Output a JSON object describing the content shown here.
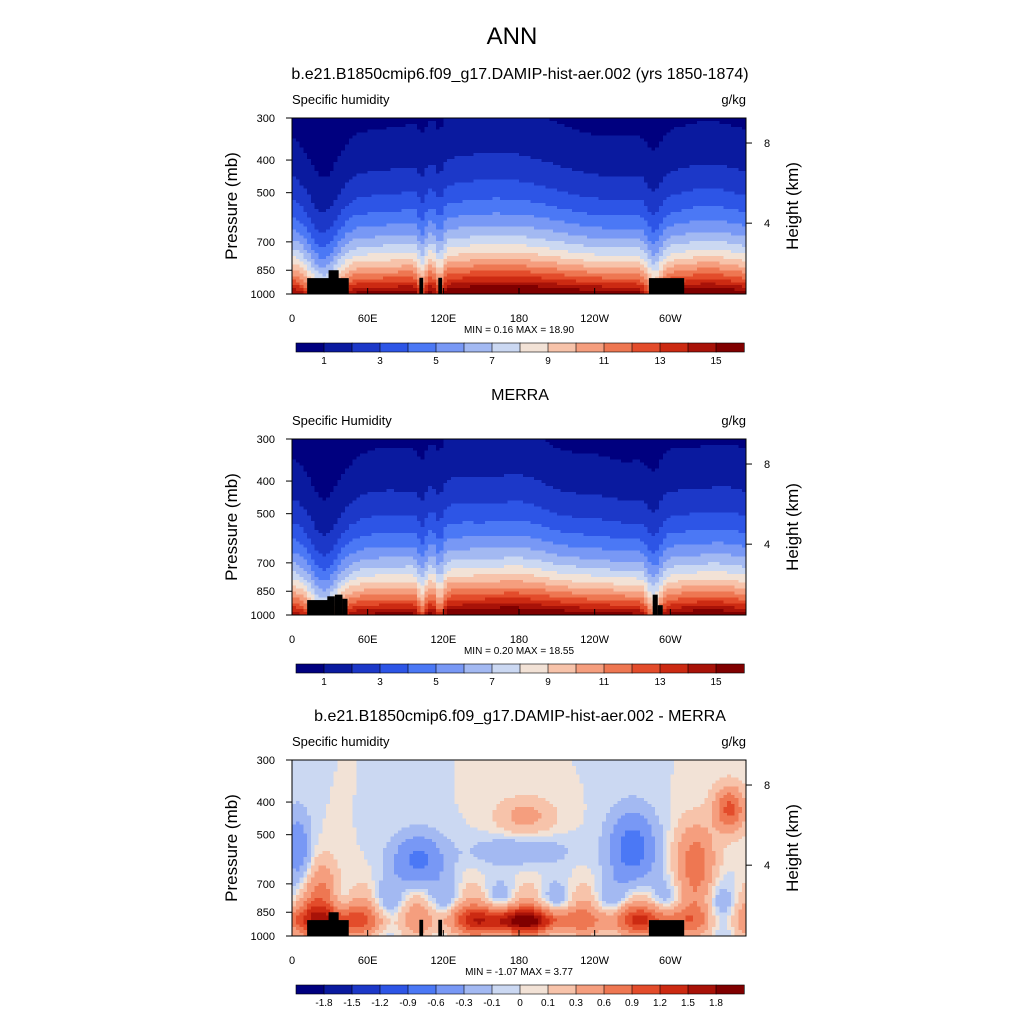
{
  "figure": {
    "title": "ANN",
    "left_axis_label": "Pressure (mb)",
    "right_axis_label": "Height (km)",
    "variable_units": "g/kg"
  },
  "chart_data": [
    {
      "type": "heatmap",
      "title": "b.e21.B1850cmip6.f09_g17.DAMIP-hist-aer.002 (yrs 1850-1874)",
      "subtitle_left": "Specific humidity",
      "subtitle_right": "g/kg",
      "ylabel": "Pressure (mb)",
      "ylabel_right": "Height (km)",
      "y_ticks": [
        "300",
        "400",
        "500",
        "700",
        "850",
        "1000"
      ],
      "y_tick_values": [
        300,
        400,
        500,
        700,
        850,
        1000
      ],
      "ylim": [
        1000,
        300
      ],
      "y_right_ticks": [
        "8",
        "4"
      ],
      "x_ticks": [
        "0",
        "60E",
        "120E",
        "180",
        "120W",
        "60W"
      ],
      "x_tick_values": [
        0,
        60,
        120,
        180,
        240,
        300
      ],
      "xlim": [
        0,
        360
      ],
      "stats_text": "MIN =   0.16  MAX =  18.90",
      "min": 0.16,
      "max": 18.9,
      "colorbar_levels": [
        0,
        1,
        2,
        3,
        4,
        5,
        6,
        7,
        8,
        9,
        10,
        11,
        12,
        13,
        14,
        15,
        16
      ],
      "colorbar_labels": [
        "1",
        "3",
        "5",
        "7",
        "9",
        "11",
        "13",
        "15"
      ],
      "colors": [
        "#00007f",
        "#0a1a9f",
        "#1c38c8",
        "#2d55e6",
        "#4b78f5",
        "#7898f5",
        "#a3b9f2",
        "#cbd8f2",
        "#f2e2d6",
        "#f7c3aa",
        "#f59e7e",
        "#ee7752",
        "#e34c2b",
        "#cc2a12",
        "#a81208",
        "#800000"
      ]
    },
    {
      "type": "heatmap",
      "title": "MERRA",
      "subtitle_left": "Specific Humidity",
      "subtitle_right": "g/kg",
      "ylabel": "Pressure (mb)",
      "ylabel_right": "Height (km)",
      "y_ticks": [
        "300",
        "400",
        "500",
        "700",
        "850",
        "1000"
      ],
      "y_tick_values": [
        300,
        400,
        500,
        700,
        850,
        1000
      ],
      "ylim": [
        1000,
        300
      ],
      "y_right_ticks": [
        "8",
        "4"
      ],
      "x_ticks": [
        "0",
        "60E",
        "120E",
        "180",
        "120W",
        "60W"
      ],
      "x_tick_values": [
        0,
        60,
        120,
        180,
        240,
        300
      ],
      "xlim": [
        0,
        360
      ],
      "stats_text": "MIN =   0.20  MAX =  18.55",
      "min": 0.2,
      "max": 18.55,
      "colorbar_levels": [
        0,
        1,
        2,
        3,
        4,
        5,
        6,
        7,
        8,
        9,
        10,
        11,
        12,
        13,
        14,
        15,
        16
      ],
      "colorbar_labels": [
        "1",
        "3",
        "5",
        "7",
        "9",
        "11",
        "13",
        "15"
      ],
      "colors": [
        "#00007f",
        "#0a1a9f",
        "#1c38c8",
        "#2d55e6",
        "#4b78f5",
        "#7898f5",
        "#a3b9f2",
        "#cbd8f2",
        "#f2e2d6",
        "#f7c3aa",
        "#f59e7e",
        "#ee7752",
        "#e34c2b",
        "#cc2a12",
        "#a81208",
        "#800000"
      ]
    },
    {
      "type": "heatmap",
      "title": "b.e21.B1850cmip6.f09_g17.DAMIP-hist-aer.002 - MERRA",
      "subtitle_left": "Specific humidity",
      "subtitle_right": "g/kg",
      "ylabel": "Pressure (mb)",
      "ylabel_right": "Height (km)",
      "y_ticks": [
        "300",
        "400",
        "500",
        "700",
        "850",
        "1000"
      ],
      "y_tick_values": [
        300,
        400,
        500,
        700,
        850,
        1000
      ],
      "ylim": [
        1000,
        300
      ],
      "y_right_ticks": [
        "8",
        "4"
      ],
      "x_ticks": [
        "0",
        "60E",
        "120E",
        "180",
        "120W",
        "60W"
      ],
      "x_tick_values": [
        0,
        60,
        120,
        180,
        240,
        300
      ],
      "xlim": [
        0,
        360
      ],
      "stats_text": "MIN =  -1.07  MAX =   3.77",
      "min": -1.07,
      "max": 3.77,
      "colorbar_levels": [
        -2.1,
        -1.8,
        -1.5,
        -1.2,
        -0.9,
        -0.6,
        -0.3,
        -0.1,
        0,
        0.1,
        0.3,
        0.6,
        0.9,
        1.2,
        1.5,
        1.8,
        2.1
      ],
      "colorbar_labels": [
        "-1.8",
        "-1.5",
        "-1.2",
        "-0.9",
        "-0.6",
        "-0.3",
        "-0.1",
        "0",
        "0.1",
        "0.3",
        "0.6",
        "0.9",
        "1.2",
        "1.5",
        "1.8"
      ],
      "colors": [
        "#00007f",
        "#0a1a9f",
        "#1c38c8",
        "#2d55e6",
        "#4b78f5",
        "#7898f5",
        "#a3b9f2",
        "#cbd8f2",
        "#f2e2d6",
        "#f7c3aa",
        "#f59e7e",
        "#ee7752",
        "#e34c2b",
        "#cc2a12",
        "#a81208",
        "#800000"
      ]
    }
  ]
}
